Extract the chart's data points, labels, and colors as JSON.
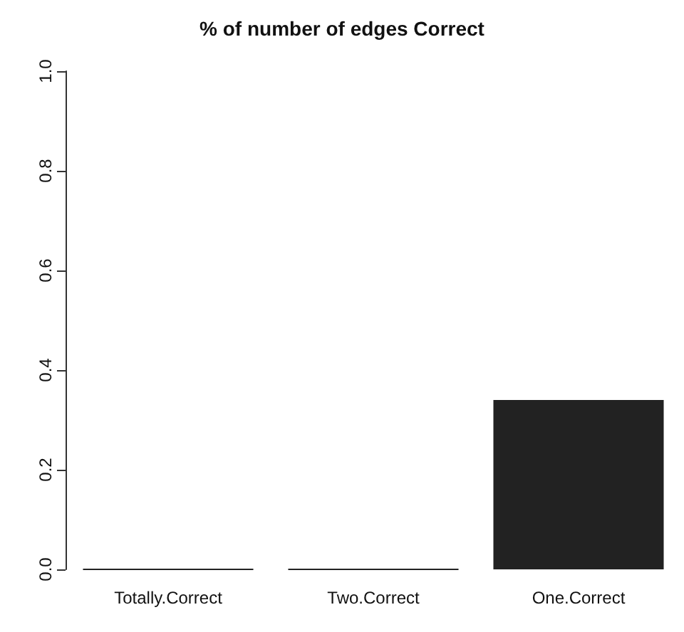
{
  "chart_data": {
    "type": "bar",
    "title": "% of number of edges Correct",
    "categories": [
      "Totally.Correct",
      "Two.Correct",
      "One.Correct"
    ],
    "values": [
      0,
      0,
      0.34
    ],
    "color": "#222222",
    "ylim": [
      0,
      1
    ],
    "yticks": [
      {
        "value": 0,
        "label": "0.0"
      },
      0.2,
      0.4,
      0.6,
      0.8,
      {
        "value": 1,
        "label": "1.0"
      }
    ],
    "grid": false
  }
}
